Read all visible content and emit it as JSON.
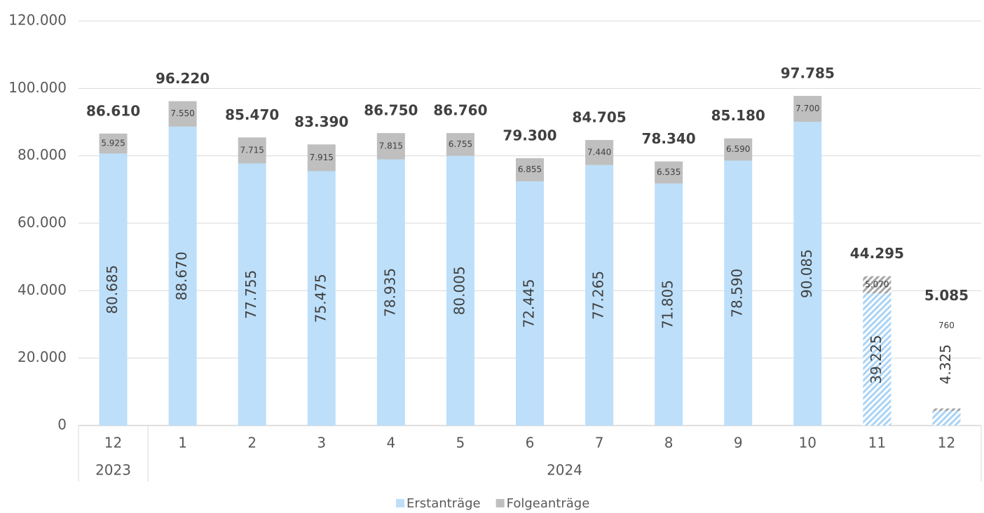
{
  "chart_data": {
    "type": "stacked-bar",
    "categories": [
      "12",
      "1",
      "2",
      "3",
      "4",
      "5",
      "6",
      "7",
      "8",
      "9",
      "10",
      "11",
      "12"
    ],
    "groups": [
      {
        "label": "2023",
        "count": 1
      },
      {
        "label": "2024",
        "count": 12
      }
    ],
    "series": [
      {
        "name": "Erstanträge",
        "color": "#bddff9",
        "values": [
          80685,
          88670,
          77755,
          75475,
          78935,
          80005,
          72445,
          77265,
          71805,
          78590,
          90085,
          39225,
          4325
        ],
        "value_labels": [
          "80.685",
          "88.670",
          "77.755",
          "75.475",
          "78.935",
          "80.005",
          "72.445",
          "77.265",
          "71.805",
          "78.590",
          "90.085",
          "39.225",
          "4.325"
        ]
      },
      {
        "name": "Folgeanträge",
        "color": "#bfbfbf",
        "values": [
          5925,
          7550,
          7715,
          7915,
          7815,
          6755,
          6855,
          7440,
          6535,
          6590,
          7700,
          5070,
          760
        ],
        "value_labels": [
          "5.925",
          "7.550",
          "7.715",
          "7.915",
          "7.815",
          "6.755",
          "6.855",
          "7.440",
          "6.535",
          "6.590",
          "7.700",
          "5.070",
          "760"
        ]
      }
    ],
    "totals": {
      "values": [
        86610,
        96220,
        85470,
        83390,
        86750,
        86760,
        79300,
        84705,
        78340,
        85180,
        97785,
        44295,
        5085
      ],
      "value_labels": [
        "86.610",
        "96.220",
        "85.470",
        "83.390",
        "86.750",
        "86.760",
        "79.300",
        "84.705",
        "78.340",
        "85.180",
        "97.785",
        "44.295",
        "5.085"
      ]
    },
    "hatched": [
      false,
      false,
      false,
      false,
      false,
      false,
      false,
      false,
      false,
      false,
      false,
      true,
      true
    ],
    "ylim": [
      0,
      120000
    ],
    "yticks": [
      0,
      {
        "value": 20000,
        "label": "20.000"
      },
      {
        "value": 40000,
        "label": "40.000"
      },
      {
        "value": 60000,
        "label": "60.000"
      },
      {
        "value": 80000,
        "label": "80.000"
      },
      {
        "value": 100000,
        "label": "100.000"
      },
      {
        "value": 120000,
        "label": "120.000"
      }
    ],
    "grid": true,
    "legend": "bottom"
  }
}
